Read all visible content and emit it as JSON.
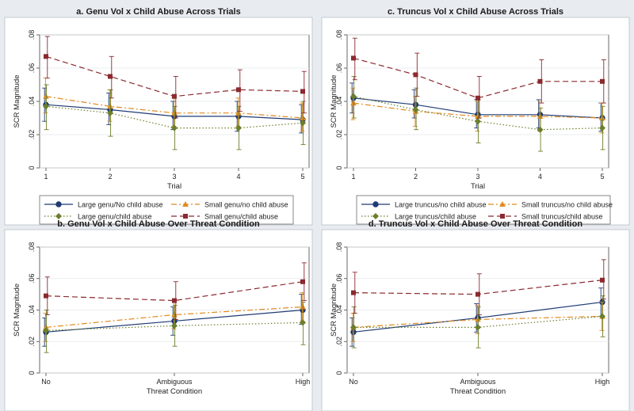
{
  "colors": {
    "large_no": "#1f3b73",
    "small_no": "#e08a1e",
    "large_yes": "#6b7f2a",
    "small_yes": "#8b2a2f",
    "panel_bg": "#ffffff",
    "fig_bg": "#e8ecf0"
  },
  "chart_data": [
    {
      "id": "a",
      "type": "line",
      "title": "a.  Genu Vol x Child Abuse Across Trials",
      "xlabel": "Trial",
      "ylabel": "SCR Magnitude",
      "categories": [
        "1",
        "2",
        "3",
        "4",
        "5"
      ],
      "ylim": [
        0,
        0.08
      ],
      "yticks": [
        "0",
        ".02",
        ".04",
        ".06",
        ".08"
      ],
      "series": [
        {
          "name": "Large genu/No child abuse",
          "key": "large_no",
          "values": [
            0.038,
            0.035,
            0.031,
            0.031,
            0.029
          ],
          "lower": [
            0.028,
            0.026,
            0.023,
            0.022,
            0.021
          ],
          "upper": [
            0.048,
            0.045,
            0.04,
            0.04,
            0.038
          ]
        },
        {
          "name": "Small genu/no child abuse",
          "key": "small_no",
          "values": [
            0.043,
            0.037,
            0.033,
            0.033,
            0.03
          ],
          "lower": [
            0.033,
            0.028,
            0.025,
            0.025,
            0.022
          ],
          "upper": [
            0.054,
            0.047,
            0.042,
            0.042,
            0.039
          ]
        },
        {
          "name": "Large genu/child abuse",
          "key": "large_yes",
          "values": [
            0.037,
            0.033,
            0.024,
            0.024,
            0.027
          ],
          "lower": [
            0.023,
            0.019,
            0.011,
            0.011,
            0.014
          ],
          "upper": [
            0.05,
            0.047,
            0.037,
            0.037,
            0.04
          ]
        },
        {
          "name": "Small genu/child abuse",
          "key": "small_yes",
          "values": [
            0.067,
            0.055,
            0.043,
            0.047,
            0.046
          ],
          "lower": [
            0.054,
            0.042,
            0.03,
            0.034,
            0.033
          ],
          "upper": [
            0.079,
            0.067,
            0.055,
            0.059,
            0.058
          ]
        }
      ]
    },
    {
      "id": "c",
      "type": "line",
      "title": "c.  Truncus Vol x Child Abuse Across Trials",
      "xlabel": "Trial",
      "ylabel": "SCR Magnitude",
      "categories": [
        "1",
        "2",
        "3",
        "4",
        "5"
      ],
      "ylim": [
        0,
        0.08
      ],
      "yticks": [
        "0",
        ".02",
        ".04",
        ".06",
        ".08"
      ],
      "series": [
        {
          "name": "Large truncus/no child abuse",
          "key": "large_no",
          "values": [
            0.042,
            0.038,
            0.032,
            0.032,
            0.03
          ],
          "lower": [
            0.033,
            0.03,
            0.024,
            0.024,
            0.022
          ],
          "upper": [
            0.051,
            0.047,
            0.041,
            0.041,
            0.039
          ]
        },
        {
          "name": "Small truncus/no child abuse",
          "key": "small_no",
          "values": [
            0.039,
            0.034,
            0.031,
            0.031,
            0.03
          ],
          "lower": [
            0.029,
            0.025,
            0.022,
            0.022,
            0.021
          ],
          "upper": [
            0.048,
            0.043,
            0.04,
            0.04,
            0.039
          ]
        },
        {
          "name": "Large truncus/child abuse",
          "key": "large_yes",
          "values": [
            0.043,
            0.035,
            0.028,
            0.023,
            0.024
          ],
          "lower": [
            0.03,
            0.023,
            0.015,
            0.01,
            0.011
          ],
          "upper": [
            0.055,
            0.048,
            0.041,
            0.036,
            0.037
          ]
        },
        {
          "name": "Small truncus/child abuse",
          "key": "small_yes",
          "values": [
            0.066,
            0.056,
            0.042,
            0.052,
            0.052
          ],
          "lower": [
            0.053,
            0.043,
            0.03,
            0.039,
            0.039
          ],
          "upper": [
            0.078,
            0.069,
            0.055,
            0.065,
            0.065
          ]
        }
      ]
    },
    {
      "id": "b",
      "type": "line",
      "title": "b.  Genu Vol x Child Abuse Over Threat Condition",
      "xlabel": "Threat Condition",
      "ylabel": "SCR Magnitude",
      "categories": [
        "No",
        "Ambiguous",
        "High"
      ],
      "ylim": [
        0,
        0.08
      ],
      "yticks": [
        "0",
        ".02",
        ".04",
        ".06",
        ".08"
      ],
      "series": [
        {
          "name": "Large genu/No child abuse",
          "key": "large_no",
          "values": [
            0.026,
            0.033,
            0.04
          ],
          "lower": [
            0.017,
            0.024,
            0.031
          ],
          "upper": [
            0.035,
            0.042,
            0.05
          ]
        },
        {
          "name": "Small genu/no child abuse",
          "key": "small_no",
          "values": [
            0.029,
            0.037,
            0.042
          ],
          "lower": [
            0.02,
            0.028,
            0.033
          ],
          "upper": [
            0.038,
            0.046,
            0.051
          ]
        },
        {
          "name": "Large genu/child abuse",
          "key": "large_yes",
          "values": [
            0.027,
            0.03,
            0.032
          ],
          "lower": [
            0.013,
            0.017,
            0.018
          ],
          "upper": [
            0.04,
            0.043,
            0.045
          ]
        },
        {
          "name": "Small genu/child abuse",
          "key": "small_yes",
          "values": [
            0.049,
            0.046,
            0.058
          ],
          "lower": [
            0.037,
            0.034,
            0.046
          ],
          "upper": [
            0.061,
            0.058,
            0.07
          ]
        }
      ]
    },
    {
      "id": "d",
      "type": "line",
      "title": "d.  Truncus Vol x Child Abuse Over Threat Condition",
      "xlabel": "Threat Condition",
      "ylabel": "SCR Magnitude",
      "categories": [
        "No",
        "Ambiguous",
        "High"
      ],
      "ylim": [
        0,
        0.08
      ],
      "yticks": [
        "0",
        ".02",
        ".04",
        ".06",
        ".08"
      ],
      "series": [
        {
          "name": "Large truncus/no child abuse",
          "key": "large_no",
          "values": [
            0.026,
            0.035,
            0.045
          ],
          "lower": [
            0.017,
            0.026,
            0.036
          ],
          "upper": [
            0.035,
            0.044,
            0.054
          ]
        },
        {
          "name": "Small truncus/no child abuse",
          "key": "small_no",
          "values": [
            0.029,
            0.034,
            0.036
          ],
          "lower": [
            0.02,
            0.025,
            0.027
          ],
          "upper": [
            0.038,
            0.043,
            0.045
          ]
        },
        {
          "name": "Large truncus/child abuse",
          "key": "large_yes",
          "values": [
            0.029,
            0.029,
            0.036
          ],
          "lower": [
            0.016,
            0.016,
            0.023
          ],
          "upper": [
            0.042,
            0.042,
            0.049
          ]
        },
        {
          "name": "Small truncus/child abuse",
          "key": "small_yes",
          "values": [
            0.051,
            0.05,
            0.059
          ],
          "lower": [
            0.038,
            0.037,
            0.047
          ],
          "upper": [
            0.064,
            0.063,
            0.072
          ]
        }
      ]
    }
  ]
}
